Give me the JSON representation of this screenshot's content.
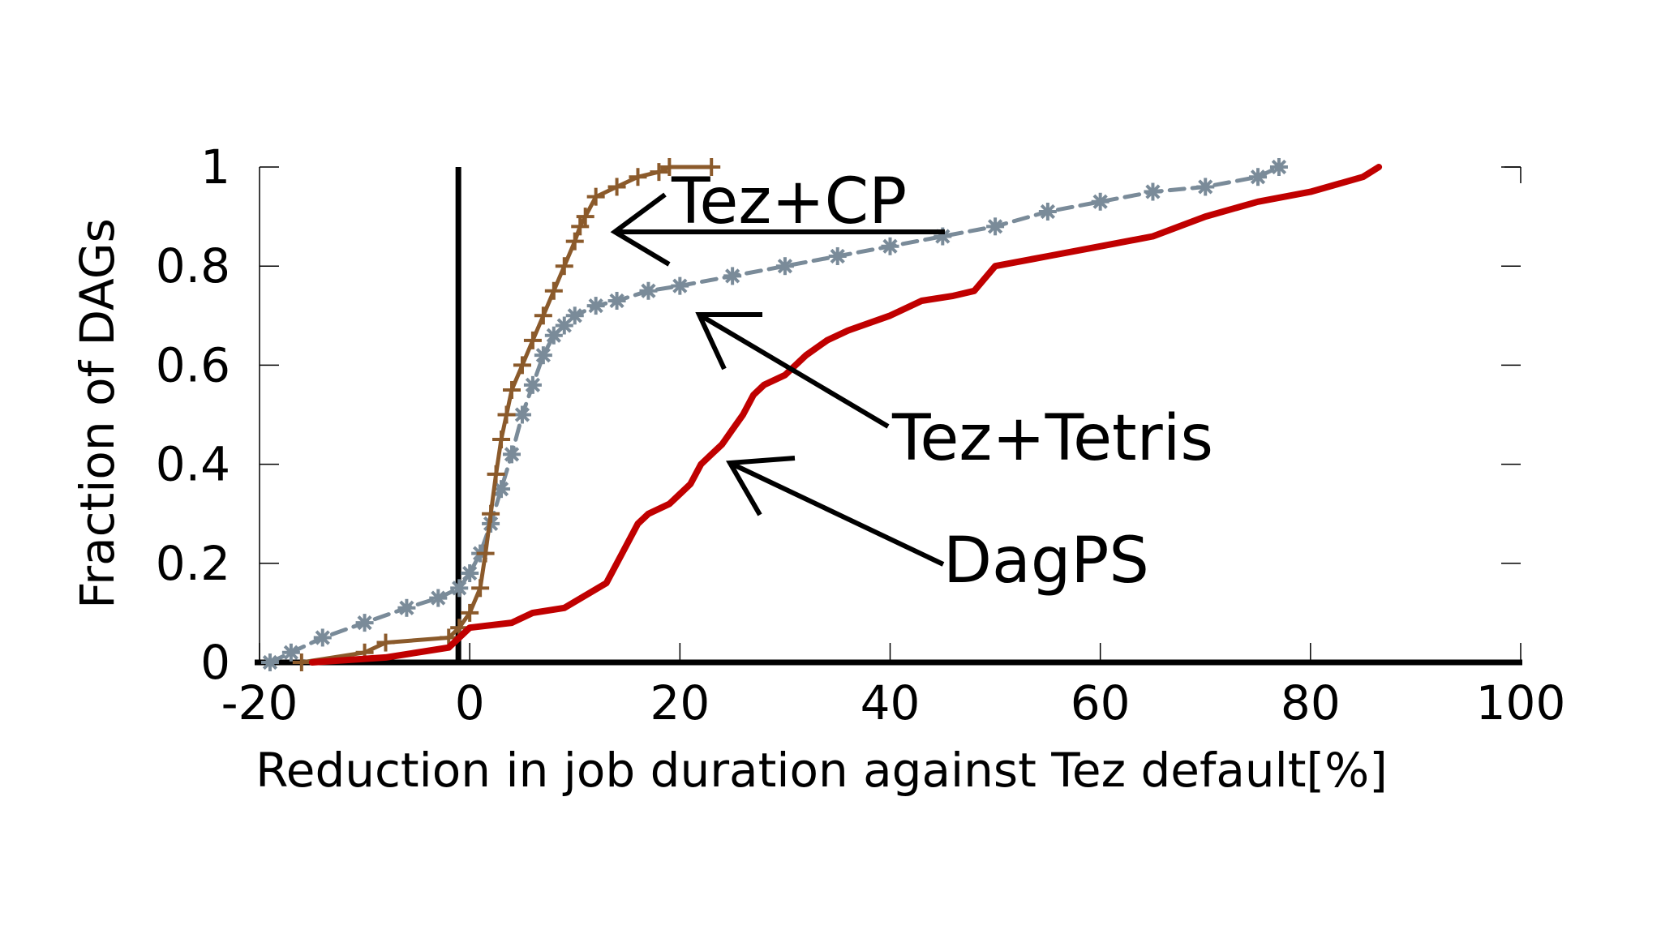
{
  "chart_data": {
    "type": "line",
    "title": "",
    "xlabel": "Reduction in job duration against Tez default[%]",
    "ylabel": "Fraction of DAGs",
    "xlim": [
      -20,
      100
    ],
    "ylim": [
      0,
      1
    ],
    "xticks": [
      -20,
      0,
      20,
      40,
      60,
      80,
      100
    ],
    "xtick_labels": [
      "-20",
      "0",
      "20",
      "40",
      "60",
      "80",
      "100"
    ],
    "yticks": [
      0,
      0.2,
      0.4,
      0.6,
      0.8,
      1
    ],
    "ytick_labels": [
      "0",
      "0.2",
      "0.4",
      "0.6",
      "0.8",
      "1"
    ],
    "reference_line_x": 0,
    "series": [
      {
        "name": "Tez+CP",
        "color": "#8b5a2b",
        "marker": "plus",
        "x": [
          -16,
          -10,
          -8,
          -2,
          -1,
          0,
          1,
          1.5,
          2,
          2.5,
          3,
          3.5,
          4,
          5,
          6,
          7,
          8,
          9,
          10,
          10.5,
          11,
          12,
          14,
          16,
          18,
          19,
          23
        ],
        "y": [
          0,
          0.02,
          0.04,
          0.05,
          0.07,
          0.1,
          0.15,
          0.22,
          0.3,
          0.38,
          0.45,
          0.5,
          0.55,
          0.6,
          0.65,
          0.7,
          0.75,
          0.8,
          0.85,
          0.88,
          0.9,
          0.94,
          0.96,
          0.98,
          0.99,
          1.0,
          1.0
        ]
      },
      {
        "name": "Tez+Tetris",
        "color": "#7a8b99",
        "marker": "asterisk",
        "x": [
          -19,
          -17,
          -14,
          -10,
          -6,
          -3,
          -1,
          0,
          1,
          2,
          3,
          4,
          5,
          6,
          7,
          8,
          9,
          10,
          12,
          14,
          17,
          20,
          25,
          30,
          35,
          40,
          45,
          50,
          55,
          60,
          65,
          70,
          75,
          77
        ],
        "y": [
          0,
          0.02,
          0.05,
          0.08,
          0.11,
          0.13,
          0.15,
          0.18,
          0.22,
          0.28,
          0.35,
          0.42,
          0.5,
          0.56,
          0.62,
          0.66,
          0.68,
          0.7,
          0.72,
          0.73,
          0.75,
          0.76,
          0.78,
          0.8,
          0.82,
          0.84,
          0.86,
          0.88,
          0.91,
          0.93,
          0.95,
          0.96,
          0.98,
          1.0
        ]
      },
      {
        "name": "DagPS",
        "color": "#c00000",
        "marker": "none",
        "x": [
          -15,
          -8,
          -2,
          0,
          4,
          6,
          9,
          13,
          14,
          16,
          17,
          19,
          20,
          21,
          22,
          23,
          24,
          25,
          26,
          27,
          28,
          30,
          32,
          34,
          36,
          40,
          43,
          46,
          48,
          50,
          55,
          60,
          65,
          70,
          75,
          80,
          85,
          86.5
        ],
        "y": [
          0,
          0.01,
          0.03,
          0.07,
          0.08,
          0.1,
          0.11,
          0.16,
          0.2,
          0.28,
          0.3,
          0.32,
          0.34,
          0.36,
          0.4,
          0.42,
          0.44,
          0.47,
          0.5,
          0.54,
          0.56,
          0.58,
          0.62,
          0.65,
          0.67,
          0.7,
          0.73,
          0.74,
          0.75,
          0.8,
          0.82,
          0.84,
          0.86,
          0.9,
          0.93,
          0.95,
          0.98,
          1.0
        ]
      }
    ],
    "annotations": [
      {
        "text": "Tez+CP",
        "target_series": "Tez+CP"
      },
      {
        "text": "Tez+Tetris",
        "target_series": "Tez+Tetris"
      },
      {
        "text": "DagPS",
        "target_series": "DagPS"
      }
    ]
  }
}
